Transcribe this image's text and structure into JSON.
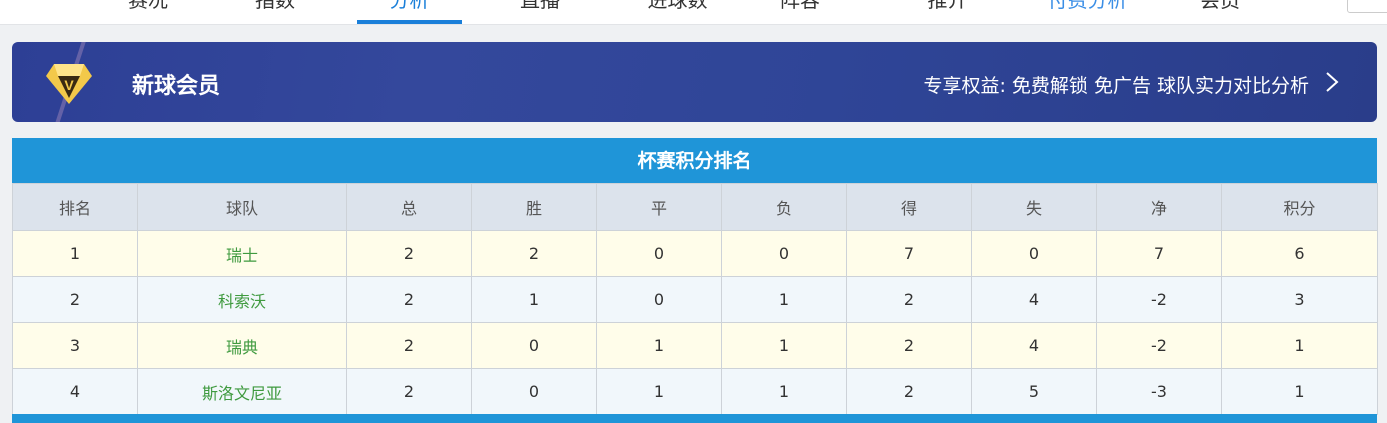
{
  "nav": {
    "tabs": [
      {
        "label": "赛况"
      },
      {
        "label": "指数"
      },
      {
        "label": "分析",
        "active": true
      },
      {
        "label": "直播"
      },
      {
        "label": "进球数"
      },
      {
        "label": "阵容"
      },
      {
        "label": "推介"
      },
      {
        "label": "付费分析"
      },
      {
        "label": "会员"
      }
    ],
    "accent": "#1a7fd9"
  },
  "banner": {
    "icon": "vip-diamond-icon",
    "title": "新球会员",
    "benefits": "专享权益: 免费解锁 免广告 球队实力对比分析"
  },
  "standings": {
    "title": "杯赛积分排名",
    "columns": [
      "排名",
      "球队",
      "总",
      "胜",
      "平",
      "负",
      "得",
      "失",
      "净",
      "积分"
    ],
    "rows": [
      [
        "1",
        "瑞士",
        "2",
        "2",
        "0",
        "0",
        "7",
        "0",
        "7",
        "6"
      ],
      [
        "2",
        "科索沃",
        "2",
        "1",
        "0",
        "1",
        "2",
        "4",
        "-2",
        "3"
      ],
      [
        "3",
        "瑞典",
        "2",
        "0",
        "1",
        "1",
        "2",
        "4",
        "-2",
        "1"
      ],
      [
        "4",
        "斯洛文尼亚",
        "2",
        "0",
        "1",
        "1",
        "2",
        "5",
        "-3",
        "1"
      ]
    ]
  }
}
